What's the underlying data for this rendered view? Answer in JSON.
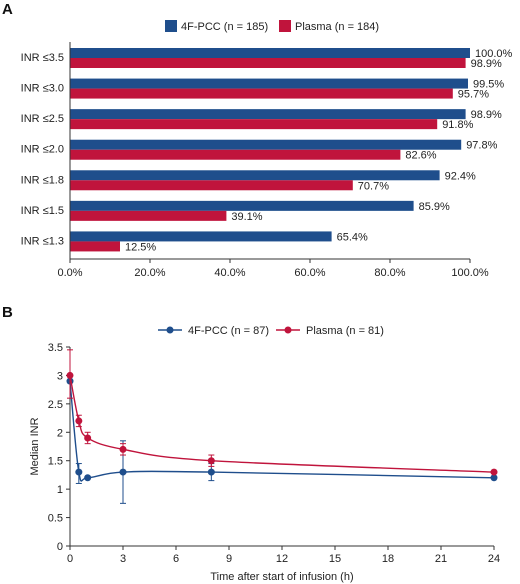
{
  "panels": [
    {
      "letter": "A"
    },
    {
      "letter": "B"
    }
  ],
  "chart_data": [
    {
      "type": "bar",
      "orientation": "horizontal",
      "categories": [
        "INR ≤3.5",
        "INR ≤3.0",
        "INR ≤2.5",
        "INR ≤2.0",
        "INR ≤1.8",
        "INR ≤1.5",
        "INR ≤1.3"
      ],
      "series": [
        {
          "name": "4F-PCC (n = 185)",
          "color": "#1f4e8c",
          "values": [
            100.0,
            99.5,
            98.9,
            97.8,
            92.4,
            85.9,
            65.4
          ],
          "labels": [
            "100.0%",
            "99.5%",
            "98.9%",
            "97.8%",
            "92.4%",
            "85.9%",
            "65.4%"
          ]
        },
        {
          "name": "Plasma (n = 184)",
          "color": "#c0143c",
          "values": [
            98.9,
            95.7,
            91.8,
            82.6,
            70.7,
            39.1,
            12.5
          ],
          "labels": [
            "98.9%",
            "95.7%",
            "91.8%",
            "82.6%",
            "70.7%",
            "39.1%",
            "12.5%"
          ]
        }
      ],
      "xlim": [
        0,
        100
      ],
      "xticks": [
        0,
        20,
        40,
        60,
        80,
        100
      ],
      "xtick_labels": [
        "0.0%",
        "20.0%",
        "40.0%",
        "60.0%",
        "80.0%",
        "100.0%"
      ],
      "legend_position": "top",
      "grid": false
    },
    {
      "type": "line",
      "xlabel": "Time after start of infusion (h)",
      "ylabel": "Median INR",
      "xlim": [
        0,
        24
      ],
      "ylim": [
        0,
        3.5
      ],
      "xticks": [
        0,
        3,
        6,
        9,
        12,
        15,
        18,
        21,
        24
      ],
      "xtick_labels": [
        "0",
        "3",
        "6",
        "9",
        "12",
        "15",
        "18",
        "21",
        "24"
      ],
      "yticks": [
        0,
        0.5,
        1,
        1.5,
        2,
        2.5,
        3,
        3.5
      ],
      "ytick_labels": [
        "0",
        "0.5",
        "1",
        "1.5",
        "2",
        "2.5",
        "3",
        "3.5"
      ],
      "legend_position": "top",
      "grid": false,
      "series": [
        {
          "name": "4F-PCC (n = 87)",
          "color": "#1f4e8c",
          "points": [
            {
              "x": 0,
              "y": 2.9,
              "lo": 2.9,
              "hi": 2.9
            },
            {
              "x": 0.5,
              "y": 1.3,
              "lo": 1.1,
              "hi": 1.45
            },
            {
              "x": 1,
              "y": 1.2,
              "lo": 1.2,
              "hi": 1.2
            },
            {
              "x": 3,
              "y": 1.3,
              "lo": 0.75,
              "hi": 1.85
            },
            {
              "x": 8,
              "y": 1.3,
              "lo": 1.15,
              "hi": 1.45
            },
            {
              "x": 24,
              "y": 1.2,
              "lo": 1.2,
              "hi": 1.2
            }
          ]
        },
        {
          "name": "Plasma (n = 81)",
          "color": "#c0143c",
          "points": [
            {
              "x": 0,
              "y": 3.0,
              "lo": 2.6,
              "hi": 3.45
            },
            {
              "x": 0.5,
              "y": 2.2,
              "lo": 2.1,
              "hi": 2.3
            },
            {
              "x": 1,
              "y": 1.9,
              "lo": 1.8,
              "hi": 2.0
            },
            {
              "x": 3,
              "y": 1.7,
              "lo": 1.6,
              "hi": 1.8
            },
            {
              "x": 8,
              "y": 1.5,
              "lo": 1.4,
              "hi": 1.6
            },
            {
              "x": 24,
              "y": 1.3,
              "lo": 1.3,
              "hi": 1.3
            }
          ]
        }
      ]
    }
  ]
}
